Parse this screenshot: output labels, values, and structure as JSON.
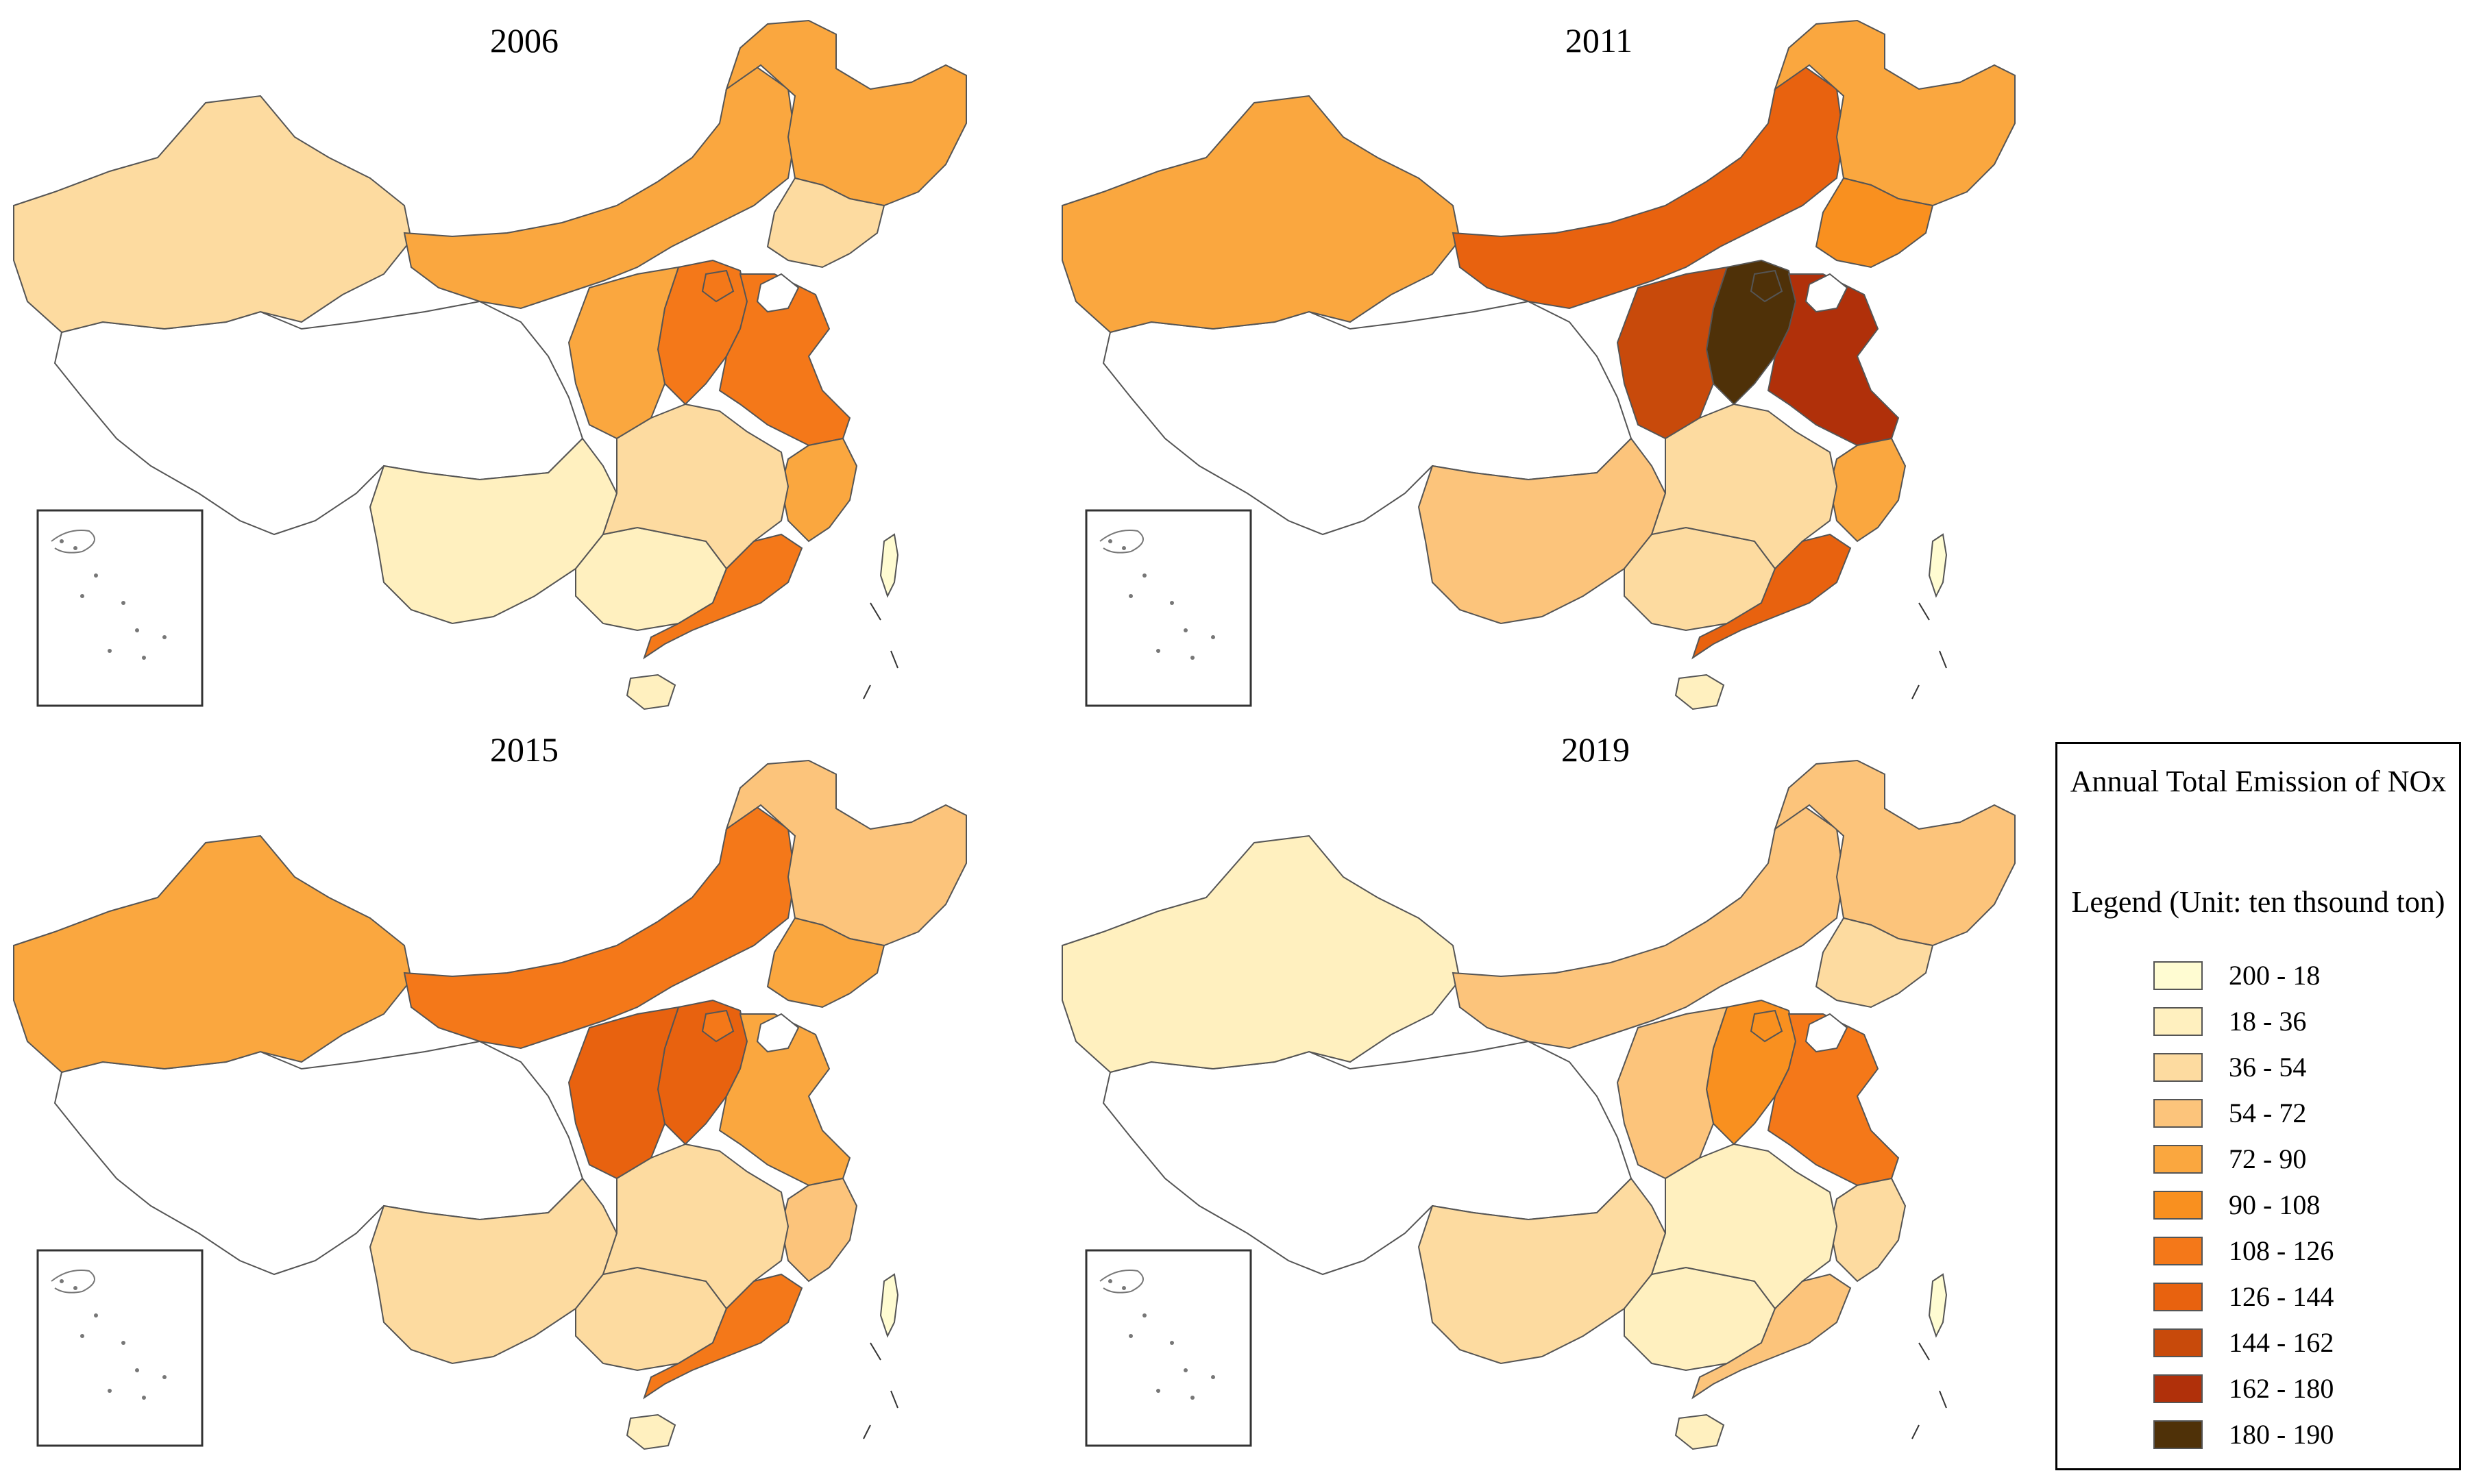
{
  "panels": [
    {
      "year": "2006"
    },
    {
      "year": "2011"
    },
    {
      "year": "2015"
    },
    {
      "year": "2019"
    }
  ],
  "legend": {
    "title": "Annual Total Emission of NOx",
    "subtitle": "Legend (Unit: ten thsound ton)",
    "classes": [
      {
        "label": "200 - 18",
        "color": "#fffcd2"
      },
      {
        "label": "18 - 36",
        "color": "#fff0bf"
      },
      {
        "label": "36 - 54",
        "color": "#fddba0"
      },
      {
        "label": "54 - 72",
        "color": "#fcc47b"
      },
      {
        "label": "72 - 90",
        "color": "#faa73f"
      },
      {
        "label": "90 - 108",
        "color": "#f9901f"
      },
      {
        "label": "108 - 126",
        "color": "#f47819"
      },
      {
        "label": "126 - 144",
        "color": "#e8620f"
      },
      {
        "label": "144 - 162",
        "color": "#c84a0b"
      },
      {
        "label": "162 - 180",
        "color": "#b0300a"
      },
      {
        "label": "180 - 190",
        "color": "#4f3108"
      }
    ]
  },
  "regions": {
    "western_plateau": "no data",
    "classes_by_year": {
      "2006": {
        "northwest": 2,
        "north_belt": 4,
        "northeast_north": 4,
        "northeast_south": 2,
        "north_china": 6,
        "central": 4,
        "east": 6,
        "east_coast": 4,
        "southwest": 1,
        "south": 1,
        "southeast_coast": 6,
        "southeast": 2,
        "hainan": 1,
        "taiwan": 0
      },
      "2011": {
        "northwest": 4,
        "north_belt": 7,
        "northeast_north": 4,
        "northeast_south": 5,
        "north_china": 10,
        "central": 8,
        "east": 9,
        "east_coast": 4,
        "southwest": 3,
        "south": 2,
        "southeast_coast": 7,
        "southeast": 2,
        "hainan": 1,
        "taiwan": 0
      },
      "2015": {
        "northwest": 4,
        "north_belt": 6,
        "northeast_north": 3,
        "northeast_south": 4,
        "north_china": 7,
        "central": 7,
        "east": 4,
        "east_coast": 3,
        "southwest": 2,
        "south": 2,
        "southeast_coast": 6,
        "southeast": 2,
        "hainan": 1,
        "taiwan": 0
      },
      "2019": {
        "northwest": 1,
        "north_belt": 3,
        "northeast_north": 3,
        "northeast_south": 2,
        "north_china": 5,
        "central": 3,
        "east": 6,
        "east_coast": 2,
        "southwest": 2,
        "south": 1,
        "southeast_coast": 3,
        "southeast": 1,
        "hainan": 1,
        "taiwan": 0
      }
    }
  }
}
